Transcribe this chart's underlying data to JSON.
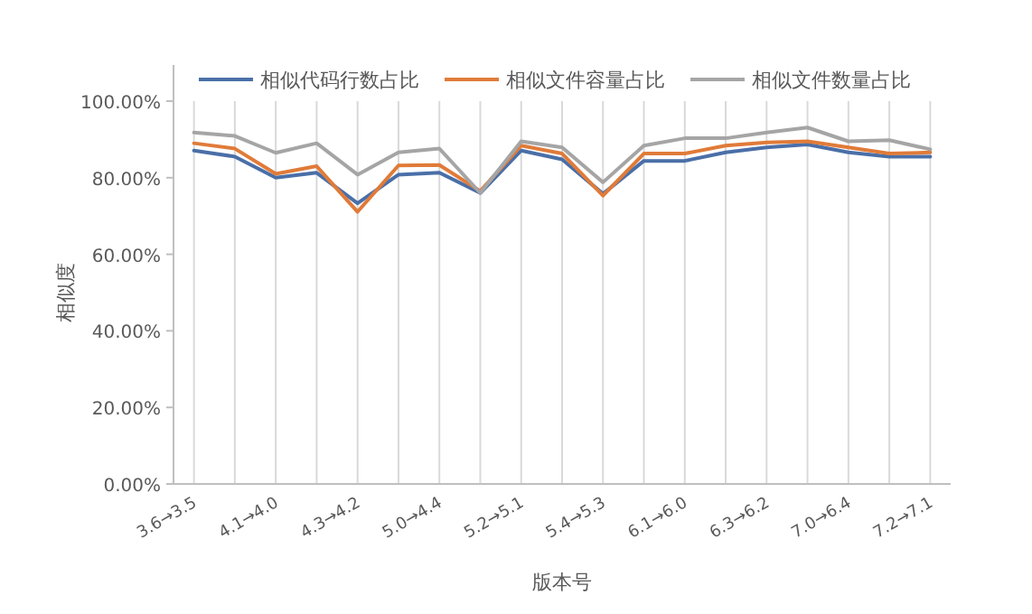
{
  "chart_data": {
    "type": "line",
    "xlabel": "版本号",
    "ylabel": "相似度",
    "categories": [
      "3.6→3.5",
      null,
      "4.1→4.0",
      null,
      "4.3→4.2",
      null,
      "5.0→4.4",
      null,
      "5.2→5.1",
      null,
      "5.4→5.3",
      null,
      "6.1→6.0",
      null,
      "6.3→6.2",
      null,
      "7.0→6.4",
      null,
      "7.2→7.1"
    ],
    "series": [
      {
        "name": "相似代码行数占比",
        "color": "#4a6fa8",
        "values": [
          87.1,
          85.5,
          80.0,
          81.3,
          73.3,
          80.8,
          81.3,
          76.0,
          87.1,
          84.8,
          75.8,
          84.4,
          84.4,
          86.6,
          87.9,
          88.7,
          86.6,
          85.5,
          85.5
        ]
      },
      {
        "name": "相似文件容量占比",
        "color": "#e07b39",
        "values": [
          89.0,
          87.6,
          81.0,
          83.0,
          71.1,
          83.2,
          83.3,
          76.5,
          88.4,
          86.3,
          75.3,
          86.3,
          86.3,
          88.4,
          89.2,
          89.5,
          87.9,
          86.3,
          86.6
        ]
      },
      {
        "name": "相似文件数量占比",
        "color": "#a5a5a5",
        "values": [
          91.8,
          90.9,
          86.5,
          89.0,
          80.8,
          86.6,
          87.6,
          76.0,
          89.5,
          87.9,
          78.8,
          88.4,
          90.3,
          90.3,
          91.8,
          93.1,
          89.5,
          89.8,
          87.4
        ]
      }
    ],
    "ylim": [
      0,
      100
    ],
    "yticks": [
      {
        "value": 0,
        "label": "0.00%"
      },
      {
        "value": 20,
        "label": "20.00%"
      },
      {
        "value": 40,
        "label": "40.00%"
      },
      {
        "value": 60,
        "label": "60.00%"
      },
      {
        "value": 80,
        "label": "80.00%"
      },
      {
        "value": 100,
        "label": "100.00%"
      }
    ],
    "grid": "x",
    "legend": "top",
    "line_style": "solid",
    "marker": "none"
  }
}
